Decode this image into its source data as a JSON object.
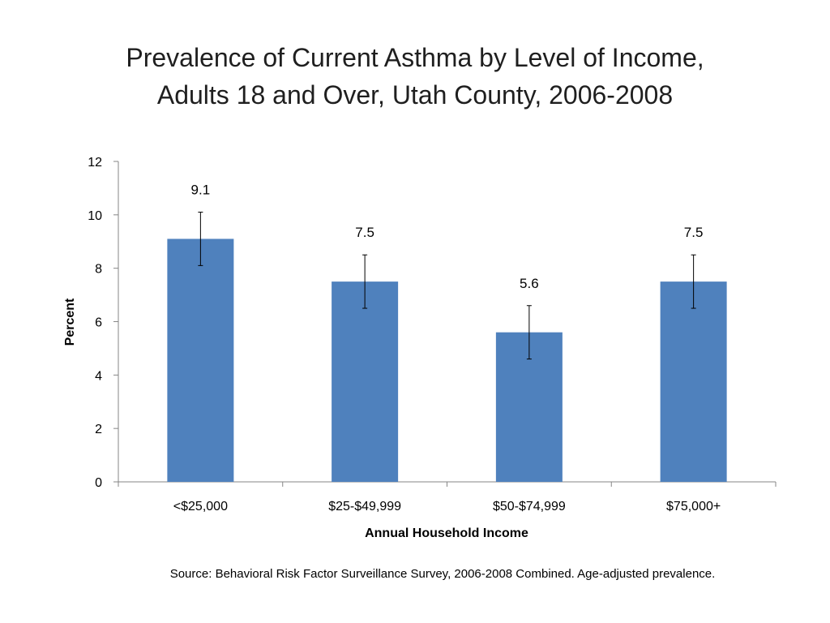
{
  "slide": {
    "title_line1": "Prevalence of Current Asthma by Level of Income,",
    "title_line2": "Adults 18 and Over, Utah County, 2006-2008",
    "source": "Source: Behavioral Risk Factor Surveillance Survey, 2006-2008 Combined. Age-adjusted prevalence."
  },
  "chart_data": {
    "type": "bar",
    "title": "Prevalence of Current Asthma by Level of Income, Adults 18 and Over, Utah County, 2006-2008",
    "xlabel": "Annual Household Income",
    "ylabel": "Percent",
    "categories": [
      "<$25,000",
      "$25-$49,999",
      "$50-$74,999",
      "$75,000+"
    ],
    "values": [
      9.1,
      7.5,
      5.6,
      7.5
    ],
    "data_labels": [
      "9.1",
      "7.5",
      "5.6",
      "7.5"
    ],
    "error_low": [
      8.1,
      6.5,
      4.6,
      6.5
    ],
    "error_high": [
      10.1,
      8.5,
      6.6,
      8.5
    ],
    "ylim": [
      0,
      12
    ],
    "yticks": [
      0,
      2,
      4,
      6,
      8,
      10,
      12
    ],
    "grid": false,
    "legend": "none",
    "bar_color": "#4f81bd"
  }
}
